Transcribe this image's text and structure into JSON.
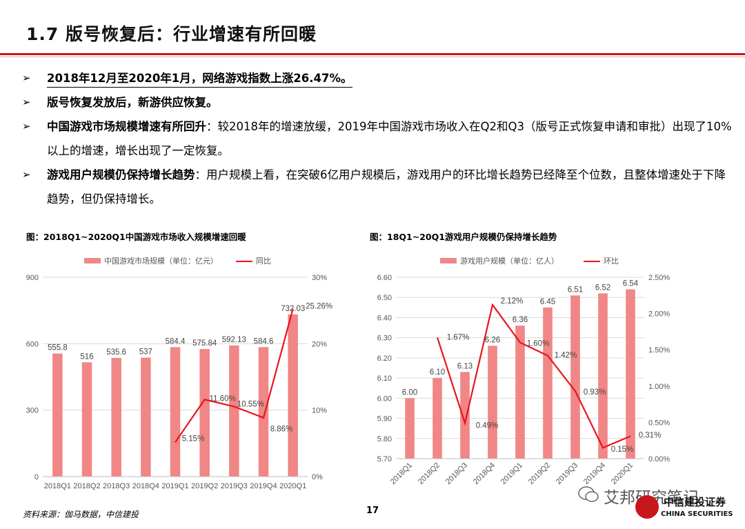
{
  "page_title": "1.7 版号恢复后：行业增速有所回暖",
  "bullets": [
    {
      "bold": "2018年12月至2020年1月，网络游戏指数上涨26.47%。",
      "text": ""
    },
    {
      "bold": "版号恢复发放后，新游供应恢复。",
      "text": ""
    },
    {
      "bold": "中国游戏市场规模增速有所回升",
      "text": "：较2018年的增速放缓，2019年中国游戏市场收入在Q2和Q3（版号正式恢复申请和审批）出现了10%以上的增速，增长出现了一定恢复。"
    },
    {
      "bold": "游戏用户规模仍保持增长趋势",
      "text": "：用户规模上看，在突破6亿用户规模后，游戏用户的环比增长趋势已经降至个位数，且整体增速处于下降趋势，但仍保持增长。"
    }
  ],
  "bullet_mark": "➢",
  "chart_data": [
    {
      "type": "bar",
      "title": "图：2018Q1~2020Q1中国游戏市场收入规模增速回暖",
      "categories": [
        "2018Q1",
        "2018Q2",
        "2018Q3",
        "2018Q4",
        "2019Q1",
        "2019Q2",
        "2019Q3",
        "2019Q4",
        "2020Q1"
      ],
      "series": [
        {
          "name": "中国游戏市场规模（单位：亿元）",
          "type": "bar",
          "axis": "left",
          "color": "#f08686",
          "values": [
            555.8,
            516,
            535.6,
            537,
            584.4,
            575.84,
            592.13,
            584.6,
            732.03
          ],
          "labels": [
            "555.8",
            "516",
            "535.6",
            "537",
            "584.4",
            "575.84",
            "592.13",
            "584.6",
            "732.03"
          ]
        },
        {
          "name": "同比",
          "type": "line",
          "axis": "right",
          "color": "#e8141b",
          "values": [
            null,
            null,
            null,
            null,
            5.15,
            11.6,
            10.55,
            8.86,
            25.26
          ],
          "labels": [
            "",
            "",
            "",
            "",
            "5.15%",
            "11.60%",
            "10.55%",
            "8.86%",
            "25.26%"
          ]
        }
      ],
      "ylim": [
        0,
        900
      ],
      "yticks": [
        "0",
        "300",
        "600",
        "900"
      ],
      "y2lim": [
        0,
        30
      ],
      "y2ticks": [
        "0%",
        "10%",
        "20%",
        "30%"
      ],
      "legend": "top",
      "grid": true
    },
    {
      "type": "bar",
      "title": "图：18Q1~20Q1游戏用户规模仍保持增长趋势",
      "categories": [
        "2018Q1",
        "2018Q2",
        "2018Q3",
        "2018Q4",
        "2019Q1",
        "2019Q2",
        "2019Q3",
        "2019Q4",
        "2020Q1"
      ],
      "series": [
        {
          "name": "游戏用户规模（单位：亿人）",
          "type": "bar",
          "axis": "left",
          "color": "#f08686",
          "values": [
            6.0,
            6.1,
            6.13,
            6.26,
            6.36,
            6.45,
            6.51,
            6.52,
            6.54
          ],
          "labels": [
            "6.00",
            "6.10",
            "6.13",
            "6.26",
            "6.36",
            "6.45",
            "6.51",
            "6.52",
            "6.54"
          ]
        },
        {
          "name": "环比",
          "type": "line",
          "axis": "right",
          "color": "#e8141b",
          "values": [
            null,
            1.67,
            0.49,
            2.12,
            1.6,
            1.42,
            0.93,
            0.15,
            0.31
          ],
          "labels": [
            "",
            "1.67%",
            "0.49%",
            "2.12%",
            "1.60%",
            "1.42%",
            "0.93%",
            "0.15%",
            "0.31%"
          ]
        }
      ],
      "ylim": [
        5.7,
        6.6
      ],
      "yticks": [
        "5.70",
        "5.80",
        "5.90",
        "6.00",
        "6.10",
        "6.20",
        "6.30",
        "6.40",
        "6.50",
        "6.60"
      ],
      "y2lim": [
        0,
        2.5
      ],
      "y2ticks": [
        "0.00%",
        "0.50%",
        "1.00%",
        "1.50%",
        "2.00%",
        "2.50%"
      ],
      "legend": "top",
      "grid": true
    }
  ],
  "source": "资料来源：伽马数据，中信建投",
  "page_number": "17",
  "watermark": "艾邦研究笔记",
  "logo": {
    "cn": "中信建投证券",
    "en": "CHINA SECURITIES",
    "color": "#c8161d"
  }
}
